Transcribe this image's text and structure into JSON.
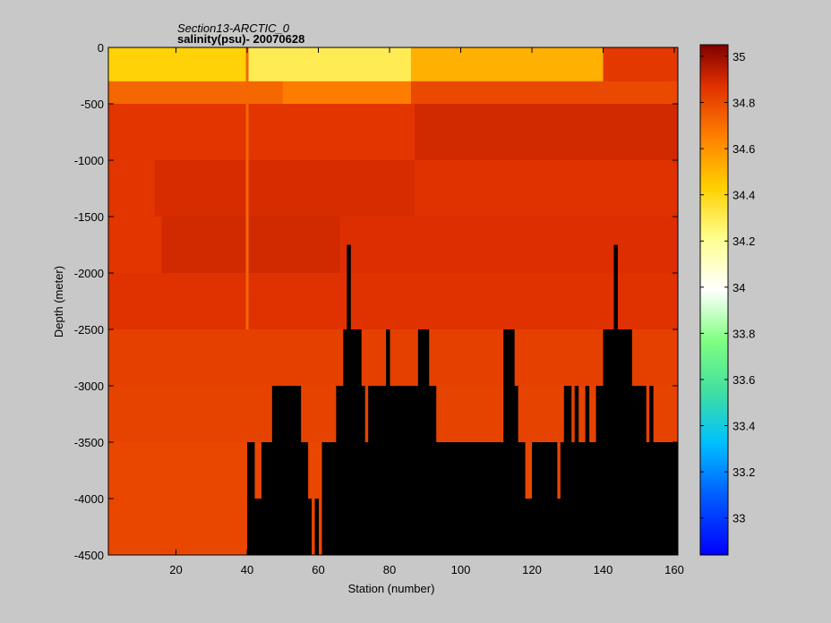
{
  "chart_data": {
    "type": "heatmap",
    "title": "Section13-ARCTIC_0",
    "subtitle": "salinity(psu)- 20070628",
    "xlabel": "Station (number)",
    "ylabel": "Depth (meter)",
    "xlim": [
      1,
      161
    ],
    "ylim": [
      -4500,
      0
    ],
    "x_ticks": [
      20,
      40,
      60,
      80,
      100,
      120,
      140,
      160
    ],
    "y_ticks": [
      0,
      -500,
      -1000,
      -1500,
      -2000,
      -2500,
      -3000,
      -3500,
      -4000,
      -4500
    ],
    "colorbar": {
      "range": [
        32.84,
        35.05
      ],
      "ticks": [
        33,
        33.2,
        33.4,
        33.6,
        33.8,
        34,
        34.2,
        34.4,
        34.6,
        34.8,
        35
      ],
      "colormap": "jet"
    },
    "depth_layers": [
      {
        "top": 0,
        "bottom": -300
      },
      {
        "top": -300,
        "bottom": -500
      },
      {
        "top": -500,
        "bottom": -1000
      },
      {
        "top": -1000,
        "bottom": -1500
      },
      {
        "top": -1500,
        "bottom": -2000
      },
      {
        "top": -2000,
        "bottom": -2500
      },
      {
        "top": -2500,
        "bottom": -3000
      },
      {
        "top": -3000,
        "bottom": -3500
      },
      {
        "top": -3500,
        "bottom": -4000
      },
      {
        "top": -4000,
        "bottom": -4500
      }
    ],
    "salinity_segments": [
      [
        {
          "x0": 1,
          "x1": 40,
          "value": 34.42
        },
        {
          "x0": 40,
          "x1": 86,
          "value": 34.3
        },
        {
          "x0": 86,
          "x1": 140,
          "value": 34.52
        },
        {
          "x0": 140,
          "x1": 161,
          "value": 34.85
        }
      ],
      [
        {
          "x0": 1,
          "x1": 50,
          "value": 34.72
        },
        {
          "x0": 50,
          "x1": 86,
          "value": 34.66
        },
        {
          "x0": 86,
          "x1": 161,
          "value": 34.8
        }
      ],
      [
        {
          "x0": 1,
          "x1": 87,
          "value": 34.86
        },
        {
          "x0": 87,
          "x1": 161,
          "value": 34.9
        }
      ],
      [
        {
          "x0": 1,
          "x1": 14,
          "value": 34.86
        },
        {
          "x0": 14,
          "x1": 87,
          "value": 34.89
        },
        {
          "x0": 87,
          "x1": 161,
          "value": 34.87
        }
      ],
      [
        {
          "x0": 1,
          "x1": 16,
          "value": 34.86
        },
        {
          "x0": 16,
          "x1": 66,
          "value": 34.9
        },
        {
          "x0": 66,
          "x1": 161,
          "value": 34.88
        }
      ],
      [
        {
          "x0": 1,
          "x1": 161,
          "value": 34.87
        }
      ],
      [
        {
          "x0": 1,
          "x1": 161,
          "value": 34.83
        }
      ],
      [
        {
          "x0": 1,
          "x1": 161,
          "value": 34.82
        }
      ],
      [
        {
          "x0": 1,
          "x1": 120,
          "value": 34.81
        },
        {
          "x0": 120,
          "x1": 127,
          "value": 34.87
        },
        {
          "x0": 127,
          "x1": 161,
          "value": 34.81
        }
      ],
      [
        {
          "x0": 1,
          "x1": 161,
          "value": 34.81
        }
      ]
    ],
    "bathymetry": [
      [
        40,
        -3500
      ],
      [
        41,
        -3500
      ],
      [
        42,
        -4000
      ],
      [
        44,
        -3500
      ],
      [
        47,
        -3000
      ],
      [
        55,
        -3500
      ],
      [
        57,
        -4000
      ],
      [
        58,
        -4500
      ],
      [
        59,
        -4000
      ],
      [
        60,
        -4500
      ],
      [
        61,
        -3500
      ],
      [
        65,
        -3000
      ],
      [
        67,
        -2500
      ],
      [
        68,
        -1750
      ],
      [
        69,
        -2500
      ],
      [
        72,
        -3000
      ],
      [
        73,
        -3500
      ],
      [
        74,
        -3000
      ],
      [
        79,
        -2500
      ],
      [
        80,
        -3000
      ],
      [
        88,
        -2500
      ],
      [
        91,
        -3000
      ],
      [
        93,
        -3500
      ],
      [
        112,
        -2500
      ],
      [
        115,
        -3000
      ],
      [
        116,
        -3500
      ],
      [
        118,
        -4000
      ],
      [
        120,
        -3500
      ],
      [
        127,
        -4000
      ],
      [
        128,
        -3500
      ],
      [
        129,
        -3000
      ],
      [
        131,
        -3500
      ],
      [
        132,
        -3000
      ],
      [
        133,
        -3500
      ],
      [
        135,
        -3000
      ],
      [
        136,
        -3500
      ],
      [
        138,
        -3000
      ],
      [
        140,
        -2500
      ],
      [
        143,
        -1750
      ],
      [
        144,
        -2500
      ],
      [
        148,
        -3000
      ],
      [
        152,
        -3500
      ],
      [
        153,
        -3000
      ],
      [
        154,
        -3500
      ],
      [
        161,
        -3500
      ]
    ],
    "anomaly_column": {
      "station": 40,
      "value": 34.72
    }
  }
}
